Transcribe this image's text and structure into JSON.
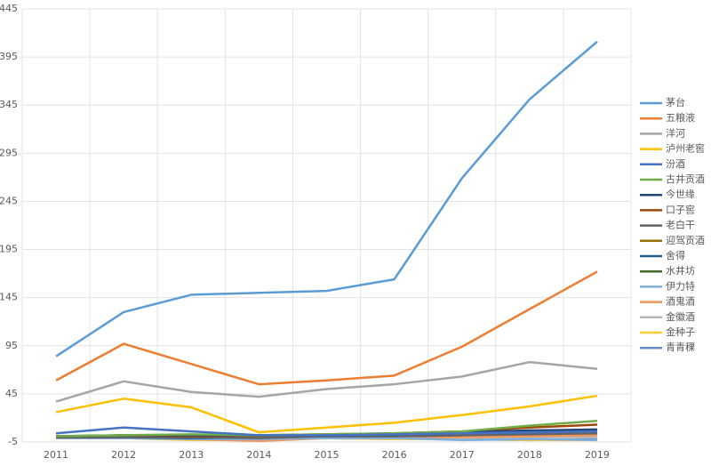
{
  "chart_data": {
    "type": "line",
    "categories": [
      "2011",
      "2012",
      "2013",
      "2014",
      "2015",
      "2016",
      "2017",
      "2018",
      "2019"
    ],
    "ylim": [
      -5,
      445
    ],
    "yticks": [
      -5,
      45,
      95,
      145,
      195,
      245,
      295,
      345,
      395,
      445
    ],
    "grid": true,
    "legend": "right",
    "series": [
      {
        "name": "茅台",
        "color": "#5b9bd5",
        "values": [
          84,
          130,
          148,
          150,
          152,
          164,
          269,
          351,
          411
        ]
      },
      {
        "name": "五粮液",
        "color": "#ed7d31",
        "values": [
          59,
          97,
          76,
          55,
          59,
          64,
          94,
          133,
          172
        ]
      },
      {
        "name": "洋河",
        "color": "#a5a5a5",
        "values": [
          37,
          58,
          47,
          42,
          50,
          55,
          63,
          78,
          71
        ]
      },
      {
        "name": "泸州老窖",
        "color": "#ffc000",
        "values": [
          26,
          40,
          31,
          5,
          10,
          15,
          23,
          32,
          43
        ]
      },
      {
        "name": "汾酒",
        "color": "#4472c4",
        "values": [
          4,
          10,
          6,
          2,
          2,
          3,
          4,
          5,
          6
        ]
      },
      {
        "name": "古井贡酒",
        "color": "#70ad47",
        "values": [
          1,
          2,
          3,
          2,
          3,
          4,
          6,
          12,
          17
        ]
      },
      {
        "name": "今世缘",
        "color": "#264478",
        "values": [
          1,
          2,
          2,
          2,
          2,
          3,
          5,
          7,
          8
        ]
      },
      {
        "name": "口子窖",
        "color": "#9e480e",
        "values": [
          1,
          2,
          1,
          2,
          3,
          4,
          6,
          10,
          13
        ]
      },
      {
        "name": "老白干",
        "color": "#636363",
        "values": [
          0,
          0,
          0,
          -1,
          1,
          1,
          2,
          3,
          4
        ]
      },
      {
        "name": "迎驾贡酒",
        "color": "#997300",
        "values": [
          0,
          1,
          1,
          1,
          2,
          3,
          4,
          5,
          7
        ]
      },
      {
        "name": "舍得",
        "color": "#255e91",
        "values": [
          0,
          0,
          -1,
          0,
          1,
          1,
          2,
          4,
          5
        ]
      },
      {
        "name": "水井坊",
        "color": "#43682b",
        "values": [
          0,
          1,
          1,
          1,
          1,
          2,
          4,
          6,
          6
        ]
      },
      {
        "name": "伊力特",
        "color": "#7cafdd",
        "values": [
          -1,
          -1,
          -2,
          -2,
          -1,
          -1,
          -3,
          -2,
          -3
        ]
      },
      {
        "name": "酒鬼酒",
        "color": "#f1975a",
        "values": [
          -1,
          -1,
          -2,
          -4,
          -1,
          -1,
          0,
          1,
          2
        ]
      },
      {
        "name": "金徽酒",
        "color": "#b7b7b7",
        "values": [
          -1,
          -1,
          -1,
          -1,
          -1,
          -1,
          -1,
          0,
          0
        ]
      },
      {
        "name": "金种子",
        "color": "#ffcd33",
        "values": [
          -1,
          -1,
          -3,
          -3,
          -1,
          -2,
          -2,
          -3,
          -3
        ]
      },
      {
        "name": "青青稞",
        "color": "#698ed0",
        "values": [
          -1,
          -1,
          -1,
          -2,
          -1,
          -2,
          -2,
          -3,
          -2
        ]
      }
    ]
  }
}
